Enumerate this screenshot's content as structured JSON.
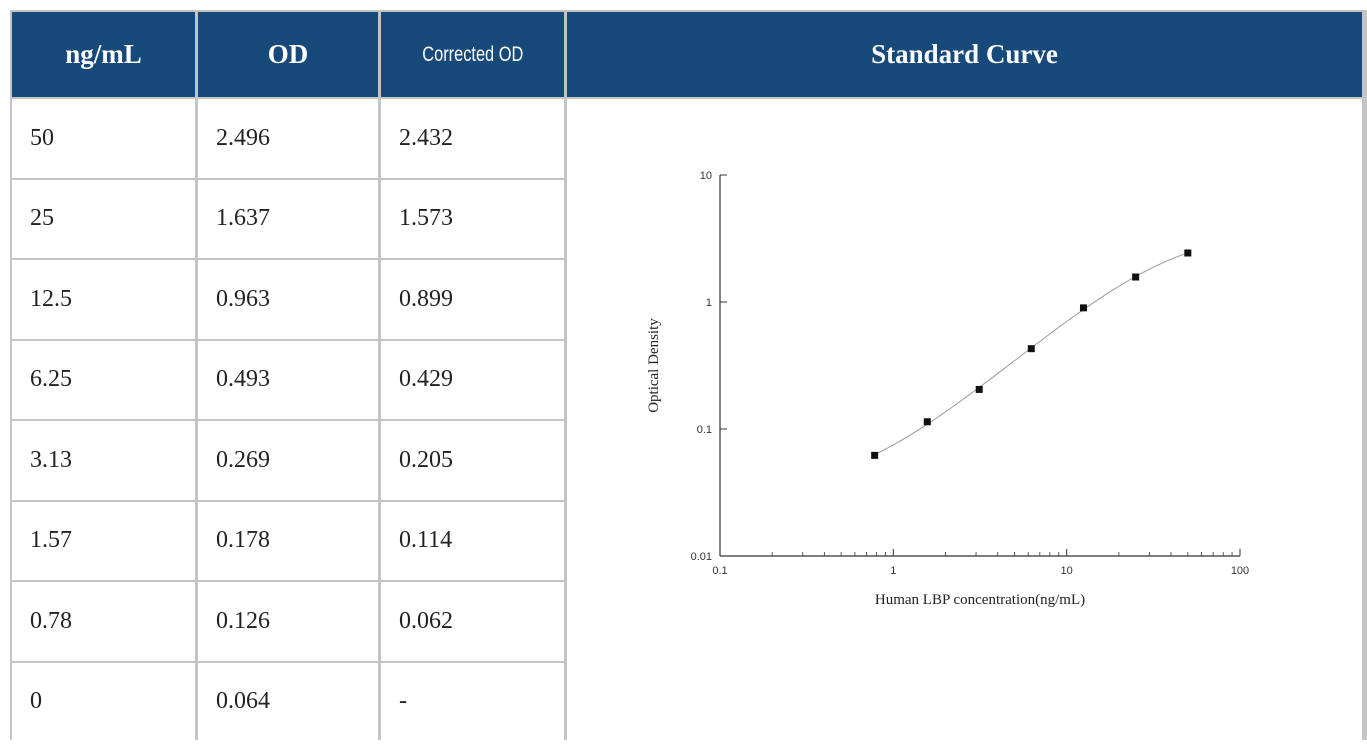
{
  "table": {
    "headers": [
      "ng/mL",
      "OD",
      "Corrected OD",
      "Standard Curve"
    ],
    "rows": [
      [
        "50",
        "2.496",
        "2.432"
      ],
      [
        "25",
        "1.637",
        "1.573"
      ],
      [
        "12.5",
        "0.963",
        "0.899"
      ],
      [
        "6.25",
        "0.493",
        "0.429"
      ],
      [
        "3.13",
        "0.269",
        "0.205"
      ],
      [
        "1.57",
        "0.178",
        "0.114"
      ],
      [
        "0.78",
        "0.126",
        "0.062"
      ],
      [
        "0",
        "0.064",
        "-"
      ]
    ]
  },
  "chart_data": {
    "type": "scatter",
    "title": "Standard Curve",
    "xlabel": "Human LBP concentration(ng/mL)",
    "ylabel": "Optical Density",
    "x_scale": "log",
    "y_scale": "log",
    "xlim": [
      0.1,
      100
    ],
    "ylim": [
      0.01,
      10
    ],
    "x_ticks": [
      "0.1",
      "1",
      "10",
      "100"
    ],
    "y_ticks": [
      "0.01",
      "0.1",
      "1",
      "10"
    ],
    "grid": false,
    "series": [
      {
        "x": [
          0.78,
          1.57,
          3.13,
          6.25,
          12.5,
          25,
          50
        ],
        "y": [
          0.062,
          0.114,
          0.205,
          0.429,
          0.899,
          1.573,
          2.432
        ]
      }
    ]
  }
}
